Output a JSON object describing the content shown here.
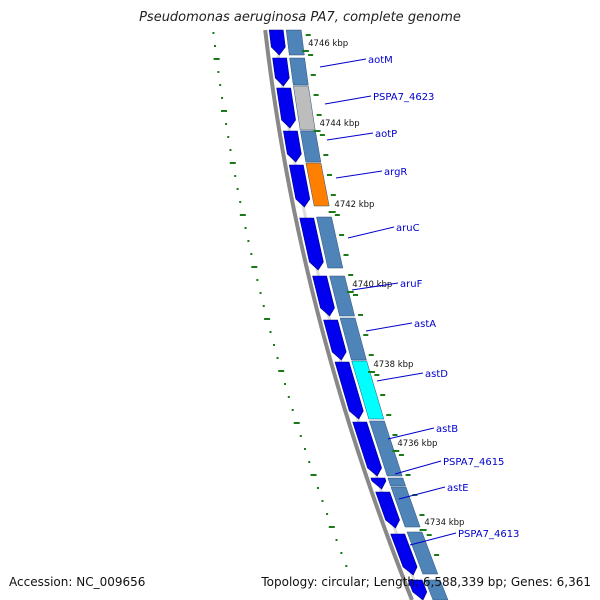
{
  "title": "Pseudomonas aeruginosa PA7, complete genome",
  "footer": {
    "accession": "Accession: NC_009656",
    "summary": "Topology: circular; Length: 6,588,339 bp; Genes: 6,361"
  },
  "ticks": [
    "4746 kbp",
    "4744 kbp",
    "4742 kbp",
    "4740 kbp",
    "4738 kbp",
    "4736 kbp",
    "4734 kbp"
  ],
  "genes": [
    "aotM",
    "PSPA7_4623",
    "aotP",
    "argR",
    "aruC",
    "aruF",
    "astA",
    "astD",
    "astB",
    "PSPA7_4615",
    "astE",
    "PSPA7_4613"
  ],
  "colors": {
    "cds": "#0000ee",
    "feature_default": "#4f84b8",
    "feature_gray": "#bdbdbd",
    "feature_orange": "#ff8000",
    "feature_cyan": "#00ffff",
    "label": "#0000cc",
    "tick": "#1a7a1a",
    "backbone": "#888888"
  }
}
